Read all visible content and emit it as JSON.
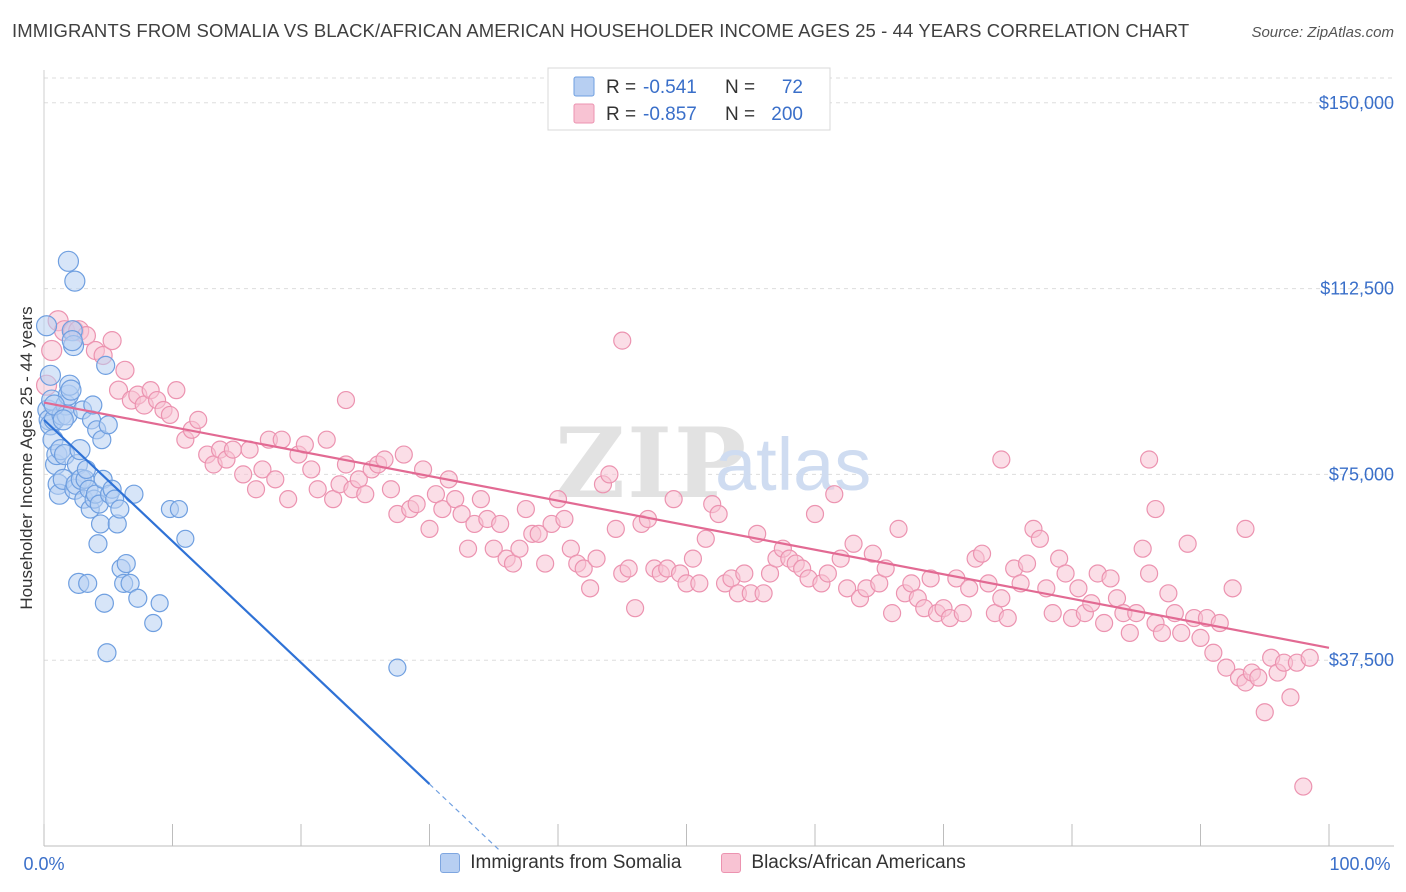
{
  "header": {
    "title": "IMMIGRANTS FROM SOMALIA VS BLACK/AFRICAN AMERICAN HOUSEHOLDER INCOME AGES 25 - 44 YEARS CORRELATION CHART",
    "source": "Source: ZipAtlas.com"
  },
  "watermark": {
    "zip": "ZIP",
    "atlas": "atlas"
  },
  "legend_top": {
    "rows": [
      {
        "r_label": "R =",
        "r_value": "-0.541",
        "n_label": "N =",
        "n_value": "72"
      },
      {
        "r_label": "R =",
        "r_value": "-0.857",
        "n_label": "N =",
        "n_value": "200"
      }
    ]
  },
  "legend_bottom": {
    "items": [
      {
        "label": "Immigrants from Somalia"
      },
      {
        "label": "Blacks/African Americans"
      }
    ]
  },
  "colors": {
    "blue_fill": "#b7cff2",
    "blue_stroke": "#6f9fe0",
    "blue_line": "#2f72d6",
    "pink_fill": "#f8c3d3",
    "pink_stroke": "#ec93b0",
    "pink_line": "#e26a93",
    "value_text": "#3a6fc9",
    "grid": "#dddddd"
  },
  "chart_data": {
    "type": "scatter",
    "title": "IMMIGRANTS FROM SOMALIA VS BLACK/AFRICAN AMERICAN HOUSEHOLDER INCOME AGES 25 - 44 YEARS CORRELATION CHART",
    "xlabel": "",
    "ylabel": "Householder Income Ages 25 - 44 years",
    "xlim": [
      0,
      100
    ],
    "ylim": [
      0,
      155000
    ],
    "x_tick_labels": [
      "0.0%",
      "100.0%"
    ],
    "y_ticks": [
      37500,
      75000,
      112500,
      150000
    ],
    "y_tick_labels": [
      "$37,500",
      "$75,000",
      "$112,500",
      "$150,000"
    ],
    "grid": true,
    "legend_position": "top-center",
    "series": [
      {
        "name": "Immigrants from Somalia",
        "color": "#6f9fe0",
        "r": -0.541,
        "n": 72,
        "trend": {
          "x0": 0,
          "y0": 86000,
          "x1": 30,
          "y1": 12500,
          "dashed_to_x": 35.5,
          "dashed_to_y": -1000
        },
        "points": [
          [
            0.2,
            105
          ],
          [
            0.3,
            88
          ],
          [
            0.4,
            86
          ],
          [
            0.5,
            85
          ],
          [
            0.6,
            90
          ],
          [
            0.7,
            82
          ],
          [
            0.8,
            86
          ],
          [
            0.9,
            77
          ],
          [
            1.0,
            79
          ],
          [
            1.1,
            73
          ],
          [
            1.2,
            71
          ],
          [
            1.3,
            80
          ],
          [
            1.4,
            87
          ],
          [
            1.5,
            74
          ],
          [
            1.6,
            79
          ],
          [
            1.7,
            89
          ],
          [
            1.8,
            87
          ],
          [
            1.9,
            91
          ],
          [
            2.0,
            93
          ],
          [
            2.1,
            92
          ],
          [
            2.2,
            104
          ],
          [
            2.3,
            101
          ],
          [
            2.4,
            72
          ],
          [
            2.5,
            73
          ],
          [
            2.6,
            77
          ],
          [
            2.7,
            53
          ],
          [
            2.8,
            80
          ],
          [
            2.9,
            74
          ],
          [
            3.0,
            88
          ],
          [
            3.1,
            70
          ],
          [
            3.2,
            74
          ],
          [
            3.3,
            76
          ],
          [
            3.4,
            53
          ],
          [
            3.5,
            72
          ],
          [
            3.6,
            68
          ],
          [
            3.7,
            86
          ],
          [
            3.8,
            89
          ],
          [
            3.9,
            70
          ],
          [
            4.0,
            71
          ],
          [
            4.1,
            84
          ],
          [
            4.2,
            61
          ],
          [
            4.3,
            69
          ],
          [
            4.4,
            65
          ],
          [
            4.5,
            82
          ],
          [
            4.6,
            74
          ],
          [
            4.7,
            49
          ],
          [
            4.8,
            97
          ],
          [
            4.9,
            39
          ],
          [
            5.0,
            85
          ],
          [
            5.1,
            71
          ],
          [
            5.3,
            72
          ],
          [
            5.5,
            70
          ],
          [
            5.7,
            65
          ],
          [
            5.9,
            68
          ],
          [
            6.0,
            56
          ],
          [
            6.2,
            53
          ],
          [
            6.4,
            57
          ],
          [
            6.7,
            53
          ],
          [
            7.0,
            71
          ],
          [
            7.3,
            50
          ],
          [
            8.5,
            45
          ],
          [
            9.0,
            49
          ],
          [
            9.8,
            68
          ],
          [
            10.5,
            68
          ],
          [
            11.0,
            62
          ],
          [
            1.9,
            118
          ],
          [
            2.4,
            114
          ],
          [
            2.2,
            102
          ],
          [
            0.8,
            89
          ],
          [
            0.5,
            95
          ],
          [
            27.5,
            36
          ],
          [
            1.5,
            86
          ]
        ]
      },
      {
        "name": "Blacks/African Americans",
        "color": "#ec93b0",
        "r": -0.857,
        "n": 200,
        "trend": {
          "x0": 0,
          "y0": 89500,
          "x1": 100,
          "y1": 40000
        },
        "points": [
          [
            0.2,
            93
          ],
          [
            0.6,
            100
          ],
          [
            1.1,
            106
          ],
          [
            1.6,
            104
          ],
          [
            2.3,
            104
          ],
          [
            2.7,
            104
          ],
          [
            3.3,
            103
          ],
          [
            4.0,
            100
          ],
          [
            4.6,
            99
          ],
          [
            5.3,
            102
          ],
          [
            5.8,
            92
          ],
          [
            6.3,
            96
          ],
          [
            6.8,
            90
          ],
          [
            7.3,
            91
          ],
          [
            7.8,
            89
          ],
          [
            8.3,
            92
          ],
          [
            8.8,
            90
          ],
          [
            9.3,
            88
          ],
          [
            9.8,
            87
          ],
          [
            10.3,
            92
          ],
          [
            11.0,
            82
          ],
          [
            11.5,
            84
          ],
          [
            12.0,
            86
          ],
          [
            12.7,
            79
          ],
          [
            13.2,
            77
          ],
          [
            13.7,
            80
          ],
          [
            14.2,
            78
          ],
          [
            14.7,
            80
          ],
          [
            15.5,
            75
          ],
          [
            16.0,
            80
          ],
          [
            16.5,
            72
          ],
          [
            17.0,
            76
          ],
          [
            17.5,
            82
          ],
          [
            18.0,
            74
          ],
          [
            18.5,
            82
          ],
          [
            19.0,
            70
          ],
          [
            19.8,
            79
          ],
          [
            20.3,
            81
          ],
          [
            20.8,
            76
          ],
          [
            21.3,
            72
          ],
          [
            22.0,
            82
          ],
          [
            22.5,
            70
          ],
          [
            23.0,
            73
          ],
          [
            23.5,
            77
          ],
          [
            24.0,
            72
          ],
          [
            24.5,
            74
          ],
          [
            25.0,
            71
          ],
          [
            25.5,
            76
          ],
          [
            26.0,
            77
          ],
          [
            26.5,
            78
          ],
          [
            27.0,
            72
          ],
          [
            27.5,
            67
          ],
          [
            28.0,
            79
          ],
          [
            28.5,
            68
          ],
          [
            29.0,
            69
          ],
          [
            29.5,
            76
          ],
          [
            30.0,
            64
          ],
          [
            30.5,
            71
          ],
          [
            31.0,
            68
          ],
          [
            31.5,
            74
          ],
          [
            32.0,
            70
          ],
          [
            32.5,
            67
          ],
          [
            33.0,
            60
          ],
          [
            33.5,
            65
          ],
          [
            34.0,
            70
          ],
          [
            34.5,
            66
          ],
          [
            35.0,
            60
          ],
          [
            35.5,
            65
          ],
          [
            36.0,
            58
          ],
          [
            36.5,
            57
          ],
          [
            37.0,
            60
          ],
          [
            37.5,
            68
          ],
          [
            38.0,
            63
          ],
          [
            38.5,
            63
          ],
          [
            39.0,
            57
          ],
          [
            39.5,
            65
          ],
          [
            40.0,
            70
          ],
          [
            40.5,
            66
          ],
          [
            41.0,
            60
          ],
          [
            41.5,
            57
          ],
          [
            42.0,
            56
          ],
          [
            42.5,
            52
          ],
          [
            43.0,
            58
          ],
          [
            43.5,
            73
          ],
          [
            44.0,
            75
          ],
          [
            44.5,
            64
          ],
          [
            45.0,
            55
          ],
          [
            45.5,
            56
          ],
          [
            46.0,
            48
          ],
          [
            46.5,
            65
          ],
          [
            47.0,
            66
          ],
          [
            47.5,
            56
          ],
          [
            48.0,
            55
          ],
          [
            48.5,
            56
          ],
          [
            49.0,
            70
          ],
          [
            49.5,
            55
          ],
          [
            50.0,
            53
          ],
          [
            50.5,
            58
          ],
          [
            51.0,
            53
          ],
          [
            51.5,
            62
          ],
          [
            52.0,
            69
          ],
          [
            52.5,
            67
          ],
          [
            53.0,
            53
          ],
          [
            53.5,
            54
          ],
          [
            54.0,
            51
          ],
          [
            54.5,
            55
          ],
          [
            55.0,
            51
          ],
          [
            55.5,
            63
          ],
          [
            56.0,
            51
          ],
          [
            56.5,
            55
          ],
          [
            57.0,
            58
          ],
          [
            57.5,
            60
          ],
          [
            58.0,
            58
          ],
          [
            58.5,
            57
          ],
          [
            59.0,
            56
          ],
          [
            59.5,
            54
          ],
          [
            60.0,
            67
          ],
          [
            60.5,
            53
          ],
          [
            61.0,
            55
          ],
          [
            61.5,
            71
          ],
          [
            62.0,
            58
          ],
          [
            62.5,
            52
          ],
          [
            63.0,
            61
          ],
          [
            63.5,
            50
          ],
          [
            64.0,
            52
          ],
          [
            64.5,
            59
          ],
          [
            65.0,
            53
          ],
          [
            65.5,
            56
          ],
          [
            66.0,
            47
          ],
          [
            66.5,
            64
          ],
          [
            67.0,
            51
          ],
          [
            67.5,
            53
          ],
          [
            68.0,
            50
          ],
          [
            68.5,
            48
          ],
          [
            69.0,
            54
          ],
          [
            69.5,
            47
          ],
          [
            70.0,
            48
          ],
          [
            70.5,
            46
          ],
          [
            71.0,
            54
          ],
          [
            71.5,
            47
          ],
          [
            72.0,
            52
          ],
          [
            72.5,
            58
          ],
          [
            73.0,
            59
          ],
          [
            73.5,
            53
          ],
          [
            74.0,
            47
          ],
          [
            74.5,
            50
          ],
          [
            75.0,
            46
          ],
          [
            75.5,
            56
          ],
          [
            76.0,
            53
          ],
          [
            76.5,
            57
          ],
          [
            77.0,
            64
          ],
          [
            77.5,
            62
          ],
          [
            78.0,
            52
          ],
          [
            78.5,
            47
          ],
          [
            79.0,
            58
          ],
          [
            79.5,
            55
          ],
          [
            80.0,
            46
          ],
          [
            80.5,
            52
          ],
          [
            81.0,
            47
          ],
          [
            81.5,
            49
          ],
          [
            82.0,
            55
          ],
          [
            82.5,
            45
          ],
          [
            83.0,
            54
          ],
          [
            83.5,
            50
          ],
          [
            84.0,
            47
          ],
          [
            84.5,
            43
          ],
          [
            85.0,
            47
          ],
          [
            85.5,
            60
          ],
          [
            86.0,
            55
          ],
          [
            86.5,
            45
          ],
          [
            87.0,
            43
          ],
          [
            87.5,
            51
          ],
          [
            88.0,
            47
          ],
          [
            88.5,
            43
          ],
          [
            89.0,
            61
          ],
          [
            89.5,
            46
          ],
          [
            90.0,
            42
          ],
          [
            90.5,
            46
          ],
          [
            91.0,
            39
          ],
          [
            91.5,
            45
          ],
          [
            92.0,
            36
          ],
          [
            92.5,
            52
          ],
          [
            93.0,
            34
          ],
          [
            93.5,
            33
          ],
          [
            94.0,
            35
          ],
          [
            94.5,
            34
          ],
          [
            95.0,
            27
          ],
          [
            95.5,
            38
          ],
          [
            96.0,
            35
          ],
          [
            96.5,
            37
          ],
          [
            97.0,
            30
          ],
          [
            97.5,
            37
          ],
          [
            98.0,
            12
          ],
          [
            98.5,
            38
          ],
          [
            45.0,
            102
          ],
          [
            23.5,
            90
          ],
          [
            74.5,
            78
          ],
          [
            86.0,
            78
          ],
          [
            86.5,
            68
          ],
          [
            93.5,
            64
          ]
        ]
      }
    ]
  }
}
